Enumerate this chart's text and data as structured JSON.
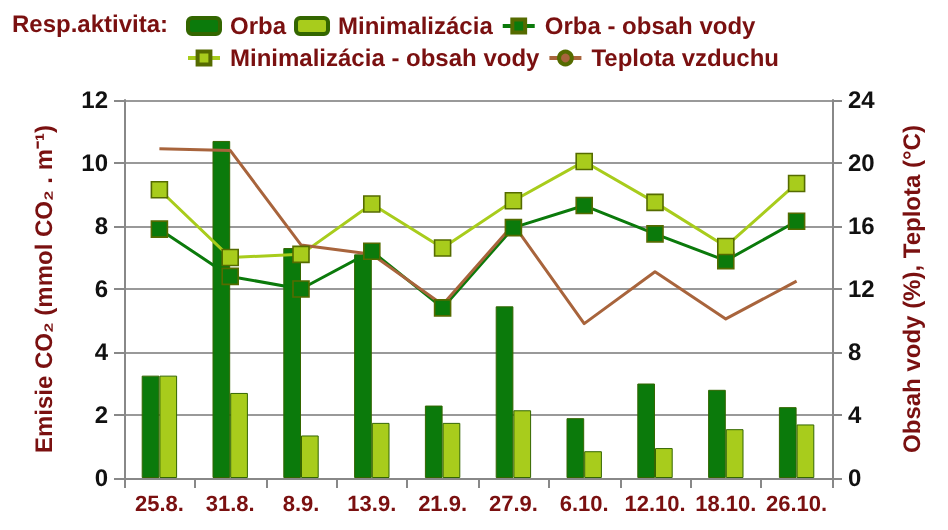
{
  "chart_data": {
    "type": "bar",
    "legend_title": "Resp.aktivita:",
    "ylabel": "Emisie CO₂ (mmol CO₂ . m⁻¹)",
    "y2label": "Obsah vody (%), Teplota (°C)",
    "categories": [
      "25.8.",
      "31.8.",
      "8.9.",
      "13.9.",
      "21.9.",
      "27.9.",
      "6.10.",
      "12.10.",
      "18.10.",
      "26.10."
    ],
    "series": [
      {
        "name": "Orba",
        "color": "#0b7a0b",
        "values": [
          3.25,
          10.7,
          7.3,
          7.1,
          2.3,
          5.45,
          1.9,
          3.0,
          2.8,
          2.25
        ]
      },
      {
        "name": "Minimalizácia",
        "color": "#a8cc1c",
        "values": [
          3.25,
          2.7,
          1.35,
          1.75,
          1.75,
          2.15,
          0.85,
          0.95,
          1.55,
          1.7
        ]
      },
      {
        "name": "Orba - obsah vody",
        "type": "line",
        "axis": "y2",
        "marker": "square",
        "color": "#0b7a0b",
        "values": [
          15.8,
          12.8,
          12.0,
          14.4,
          10.8,
          15.9,
          17.3,
          15.5,
          13.8,
          16.3
        ]
      },
      {
        "name": "Minimalizácia - obsah vody",
        "type": "line",
        "axis": "y2",
        "marker": "square",
        "color": "#a8cc1c",
        "values": [
          18.3,
          14.0,
          14.2,
          17.4,
          14.6,
          17.6,
          20.1,
          17.5,
          14.7,
          18.7
        ]
      },
      {
        "name": "Teplota vzduchu",
        "type": "line",
        "axis": "y2",
        "marker": "none",
        "color": "#a8643c",
        "values": [
          20.9,
          20.8,
          14.8,
          14.2,
          11.0,
          16.1,
          9.8,
          13.1,
          10.1,
          12.5
        ]
      }
    ],
    "ylim": [
      0,
      12
    ],
    "yticks": [
      0,
      2,
      4,
      6,
      8,
      10,
      12
    ],
    "y2lim": [
      0,
      24
    ],
    "y2ticks": [
      0,
      4,
      8,
      12,
      16,
      20,
      24
    ],
    "grid": "y",
    "legend": "top"
  }
}
